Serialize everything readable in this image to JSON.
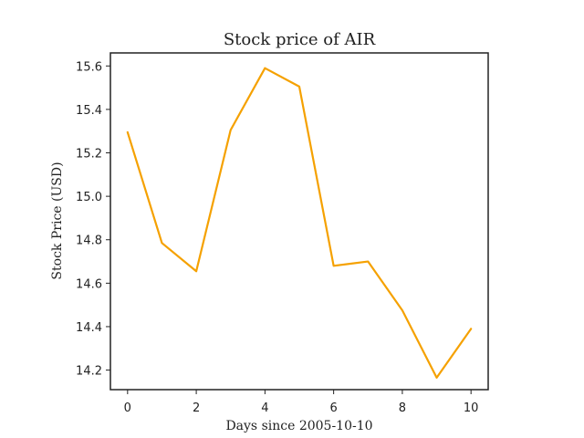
{
  "chart_data": {
    "type": "line",
    "title": "Stock price of AIR",
    "xlabel": "Days since 2005-10-10",
    "ylabel": "Stock Price (USD)",
    "x": [
      0,
      1,
      2,
      3,
      4,
      5,
      6,
      7,
      8,
      9,
      10
    ],
    "series": [
      {
        "values": [
          15.295,
          14.785,
          14.655,
          15.305,
          15.59,
          15.505,
          14.68,
          14.7,
          14.475,
          14.165,
          14.39
        ],
        "color": "#f5a100"
      }
    ],
    "xlim": [
      -0.5,
      10.5
    ],
    "ylim": [
      14.11,
      15.66
    ],
    "xticks": [
      0,
      2,
      4,
      6,
      8,
      10
    ],
    "yticks": [
      14.2,
      14.4,
      14.6,
      14.8,
      15.0,
      15.2,
      15.4,
      15.6
    ],
    "xtick_labels": [
      "0",
      "2",
      "4",
      "6",
      "8",
      "10"
    ],
    "ytick_labels": [
      "14.2",
      "14.4",
      "14.6",
      "14.8",
      "15.0",
      "15.2",
      "15.4",
      "15.6"
    ],
    "grid": false,
    "legend": "none"
  }
}
